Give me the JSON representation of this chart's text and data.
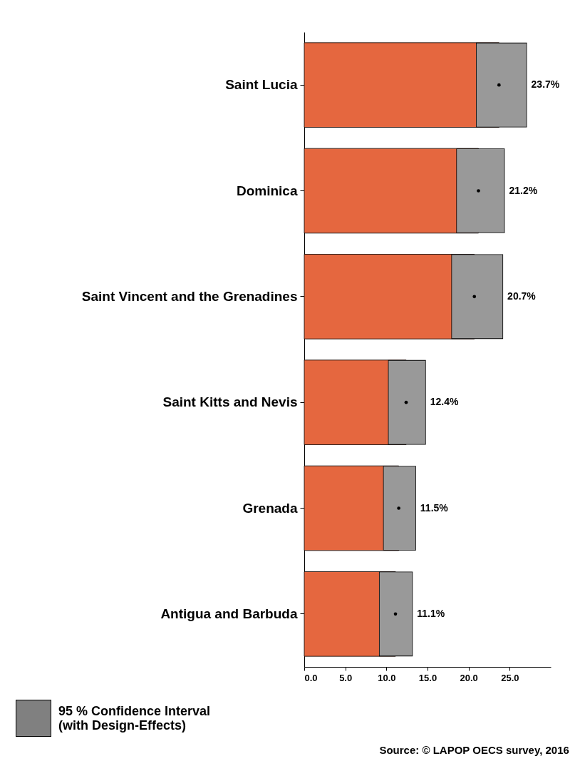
{
  "chart_data": {
    "type": "bar",
    "orientation": "horizontal",
    "categories": [
      "Saint Lucia",
      "Dominica",
      "Saint Vincent and the Grenadines",
      "Saint Kitts and Nevis",
      "Grenada",
      "Antigua and Barbuda"
    ],
    "values": [
      23.7,
      21.2,
      20.7,
      12.4,
      11.5,
      11.1
    ],
    "errors": [
      [
        20.9,
        27.1
      ],
      [
        18.5,
        24.4
      ],
      [
        17.9,
        24.2
      ],
      [
        10.2,
        14.8
      ],
      [
        9.6,
        13.6
      ],
      [
        9.1,
        13.2
      ]
    ],
    "value_labels": [
      "23.7%",
      "21.2%",
      "20.7%",
      "12.4%",
      "11.5%",
      "11.1%"
    ],
    "color": "#e5673f",
    "xlim": [
      0,
      30
    ],
    "xticks": [
      {
        "value": 0,
        "label": "0.0"
      },
      {
        "value": 5,
        "label": "5.0"
      },
      {
        "value": 10,
        "label": "10.0"
      },
      {
        "value": 15,
        "label": "15.0"
      },
      {
        "value": 20,
        "label": "20.0"
      },
      {
        "value": 25,
        "label": "25.0"
      }
    ],
    "marker": "circle",
    "grid": false,
    "annotations": [
      "95 % Confidence Interval (with Design-Effects)",
      "Source: © LAPOP OECS survey, 2016"
    ]
  }
}
